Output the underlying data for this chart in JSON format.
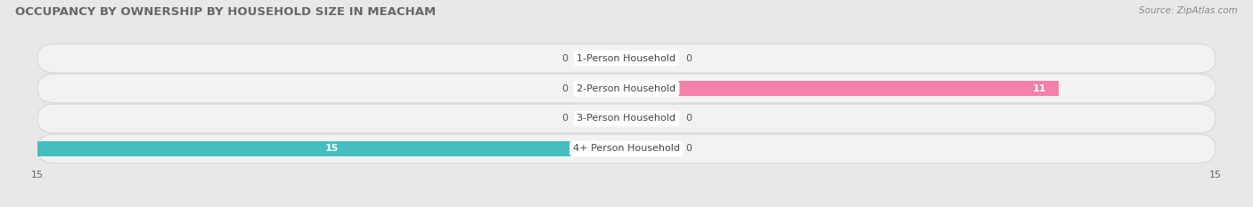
{
  "title": "OCCUPANCY BY OWNERSHIP BY HOUSEHOLD SIZE IN MEACHAM",
  "source": "Source: ZipAtlas.com",
  "categories": [
    "1-Person Household",
    "2-Person Household",
    "3-Person Household",
    "4+ Person Household"
  ],
  "owner_values": [
    0,
    0,
    0,
    15
  ],
  "renter_values": [
    0,
    11,
    0,
    0
  ],
  "owner_color": "#45bec0",
  "renter_color": "#f47faa",
  "background_color": "#e8e8e8",
  "row_bg_color": "#f2f2f2",
  "row_border_color": "#d8d8d8",
  "xlim": 15,
  "bar_height": 0.52,
  "stub_size": 1.2,
  "title_fontsize": 9.5,
  "label_fontsize": 8,
  "tick_fontsize": 8,
  "source_fontsize": 7.5,
  "value_label_color_light": "#ffffff",
  "value_label_color_dark": "#555555"
}
